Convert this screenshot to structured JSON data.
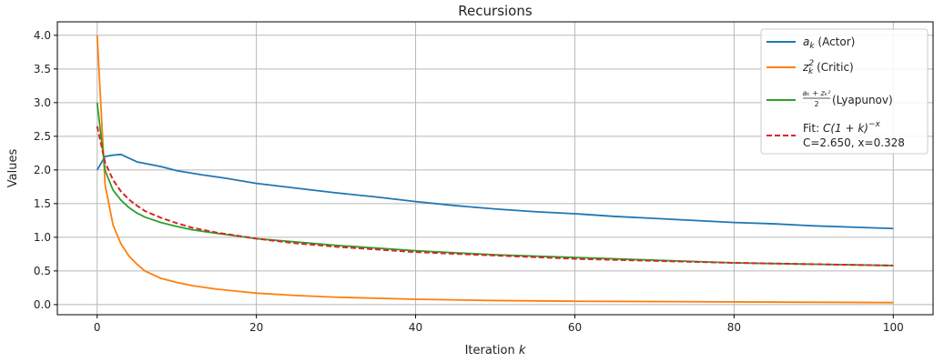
{
  "chart_data": {
    "type": "line",
    "title": "Recursions",
    "xlabel": "Iteration k",
    "ylabel": "Values",
    "xlim": [
      -5,
      105
    ],
    "ylim": [
      -0.15,
      4.2
    ],
    "xticks": [
      "0",
      "20",
      "40",
      "60",
      "80",
      "100"
    ],
    "yticks": [
      "0.0",
      "0.5",
      "1.0",
      "1.5",
      "2.0",
      "2.5",
      "3.0",
      "3.5",
      "4.0"
    ],
    "grid": true,
    "legend_position": "top-right",
    "series": [
      {
        "name": "a_k (Actor)",
        "color": "#1f77b4",
        "style": "solid",
        "x": [
          0,
          1,
          2,
          3,
          5,
          8,
          10,
          13,
          16,
          20,
          25,
          30,
          35,
          40,
          45,
          50,
          55,
          60,
          65,
          70,
          75,
          80,
          85,
          90,
          95,
          100
        ],
        "y": [
          2.0,
          2.2,
          2.22,
          2.23,
          2.12,
          2.05,
          1.99,
          1.93,
          1.88,
          1.8,
          1.73,
          1.66,
          1.6,
          1.53,
          1.47,
          1.42,
          1.38,
          1.35,
          1.31,
          1.28,
          1.25,
          1.22,
          1.2,
          1.17,
          1.15,
          1.13
        ]
      },
      {
        "name": "z_k^2 (Critic)",
        "color": "#ff7f0e",
        "style": "solid",
        "x": [
          0,
          1,
          2,
          3,
          4,
          5,
          6,
          8,
          10,
          12,
          15,
          20,
          25,
          30,
          40,
          50,
          60,
          70,
          80,
          90,
          100
        ],
        "y": [
          4.0,
          1.78,
          1.18,
          0.9,
          0.72,
          0.6,
          0.5,
          0.39,
          0.33,
          0.28,
          0.23,
          0.17,
          0.135,
          0.11,
          0.08,
          0.06,
          0.05,
          0.045,
          0.04,
          0.035,
          0.03
        ]
      },
      {
        "name": "(a_k + z_k^2)/2 (Lyapunov)",
        "color": "#2ca02c",
        "style": "solid",
        "x": [
          0,
          1,
          2,
          3,
          4,
          5,
          6,
          8,
          10,
          12,
          15,
          20,
          25,
          30,
          40,
          50,
          60,
          70,
          80,
          90,
          100
        ],
        "y": [
          3.0,
          1.99,
          1.7,
          1.55,
          1.44,
          1.36,
          1.3,
          1.22,
          1.16,
          1.11,
          1.06,
          0.98,
          0.93,
          0.88,
          0.8,
          0.74,
          0.7,
          0.66,
          0.62,
          0.6,
          0.58
        ]
      },
      {
        "name": "Fit: C(1+k)^-x  C=2.650, x=0.328",
        "color": "#d62728",
        "style": "dashed",
        "x": [
          0,
          1,
          2,
          3,
          4,
          5,
          6,
          8,
          10,
          12,
          15,
          20,
          25,
          30,
          40,
          50,
          60,
          70,
          80,
          90,
          100
        ],
        "y": [
          2.65,
          2.11,
          1.85,
          1.68,
          1.56,
          1.47,
          1.39,
          1.29,
          1.21,
          1.14,
          1.07,
          0.98,
          0.91,
          0.86,
          0.78,
          0.73,
          0.68,
          0.65,
          0.62,
          0.6,
          0.58
        ]
      }
    ]
  },
  "legend": {
    "entries": [
      {
        "main": "a",
        "sub": "k",
        "sup": "",
        "suffix": " (Actor)"
      },
      {
        "main": "z",
        "sub": "k",
        "sup": "2",
        "suffix": " (Critic)"
      },
      {
        "frac_num": "aₖ + zₖ²",
        "frac_den": "2",
        "suffix": " (Lyapunov)"
      },
      {
        "line1_pre": "Fit: ",
        "line1_math": "C(1 + k)",
        "line1_sup": "−x",
        "line2": "C=2.650, x=0.328"
      }
    ]
  },
  "labels": {
    "title": "Recursions",
    "xlabel_text": "Iteration ",
    "xlabel_var": "k",
    "ylabel": "Values"
  }
}
